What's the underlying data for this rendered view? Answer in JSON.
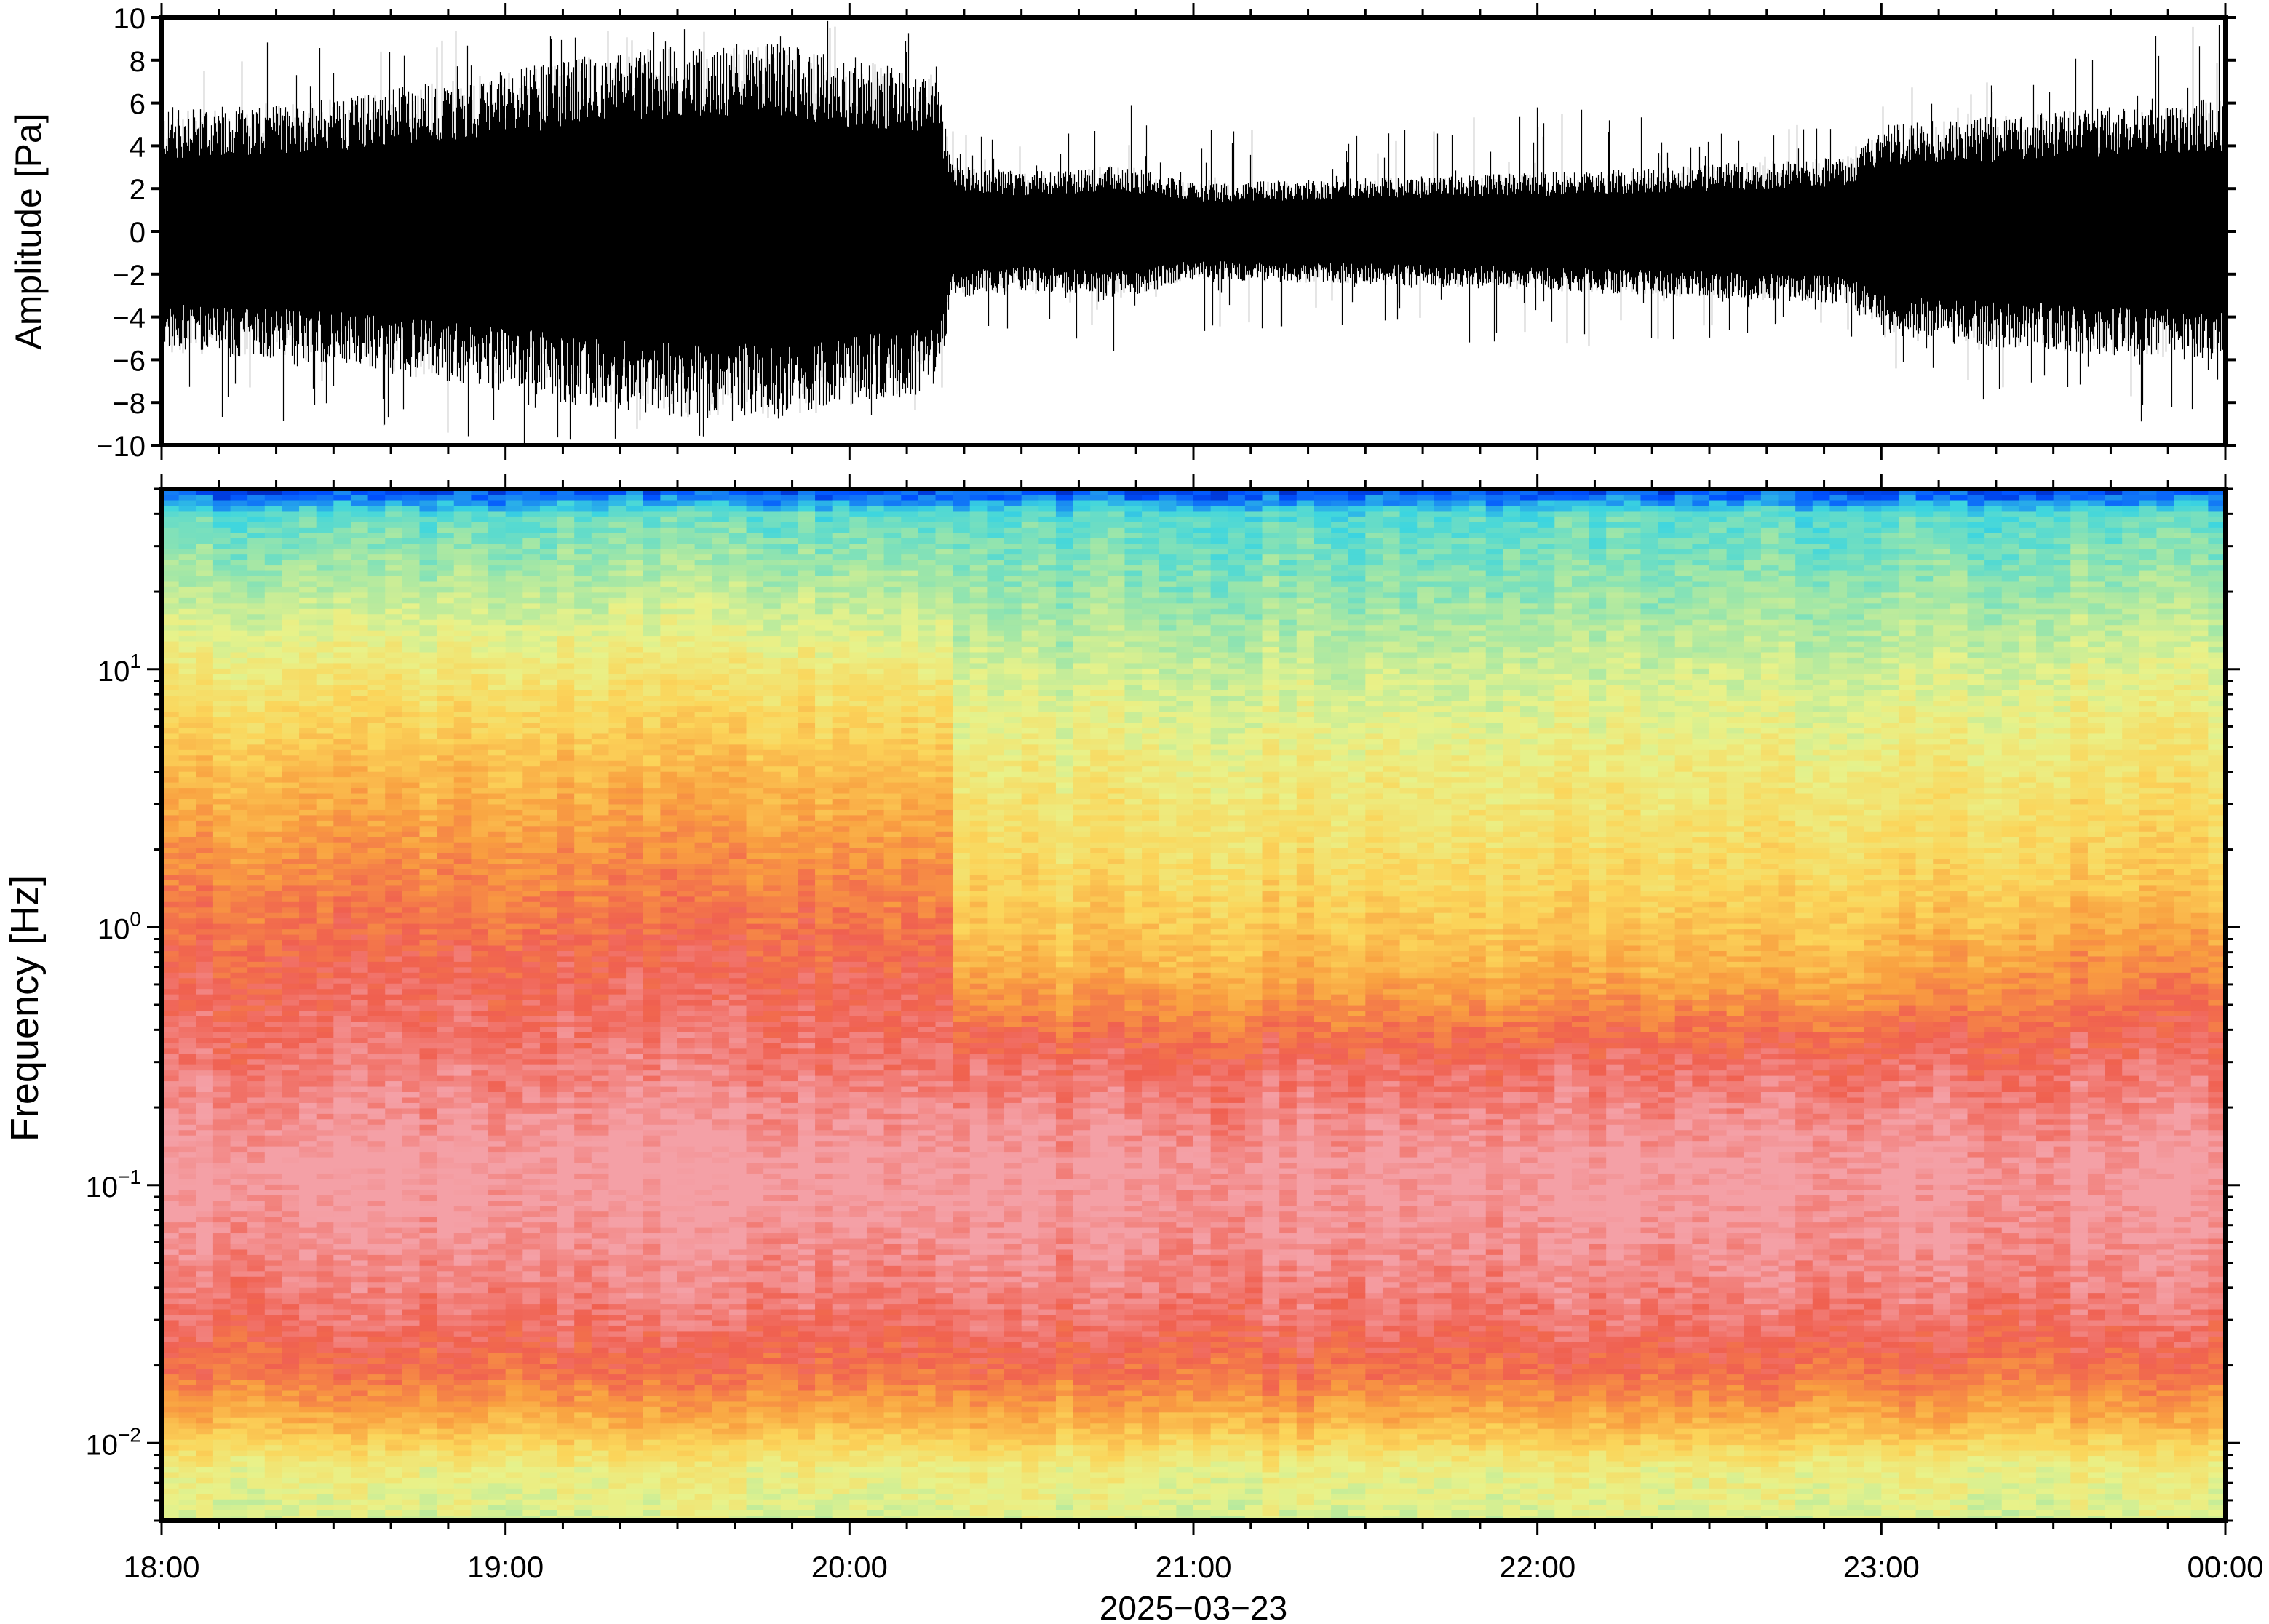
{
  "chart_data": [
    {
      "type": "line",
      "panel": "waveform",
      "title": "",
      "xlabel": "",
      "ylabel": "Amplitude [Pa]",
      "ylim": [
        -10,
        10
      ],
      "yticks": [
        "10",
        "8",
        "6",
        "4",
        "2",
        "0",
        "−2",
        "−4",
        "−6",
        "−8",
        "−10"
      ],
      "ytick_values": [
        10,
        8,
        6,
        4,
        2,
        0,
        -2,
        -4,
        -6,
        -8,
        -10
      ],
      "xlim_hours": [
        18,
        24
      ],
      "grid": false,
      "envelope": {
        "hours": [
          18.0,
          18.5,
          19.0,
          19.2,
          19.5,
          19.8,
          20.0,
          20.25,
          20.3,
          20.5,
          20.8,
          21.0,
          21.5,
          22.0,
          22.5,
          22.9,
          23.0,
          23.5,
          24.0
        ],
        "typical_peak": [
          4.5,
          5.0,
          6.0,
          6.5,
          7.0,
          7.0,
          6.5,
          6.0,
          2.5,
          2.2,
          2.5,
          1.8,
          2.0,
          2.2,
          2.5,
          2.8,
          4.0,
          4.5,
          5.0
        ],
        "max_peak": [
          9,
          9,
          10,
          10,
          10,
          10,
          10,
          9,
          5,
          4.5,
          6,
          5,
          4.5,
          6,
          5,
          5,
          7,
          8.5,
          10
        ]
      }
    },
    {
      "type": "heatmap",
      "panel": "spectrogram",
      "title": "",
      "xlabel": "2025−03−23",
      "ylabel": "Frequency [Hz]",
      "yscale": "log",
      "ylim": [
        0.005,
        50
      ],
      "ytick_values": [
        10,
        1,
        0.1,
        0.01
      ],
      "yticks": [
        {
          "base": "10",
          "exp": "1"
        },
        {
          "base": "10",
          "exp": "0"
        },
        {
          "base": "10",
          "exp": "−1"
        },
        {
          "base": "10",
          "exp": "−2"
        }
      ],
      "xticks": [
        "18:00",
        "19:00",
        "20:00",
        "21:00",
        "22:00",
        "23:00",
        "00:00"
      ],
      "xtick_hours": [
        18,
        19,
        20,
        21,
        22,
        23,
        24
      ],
      "colormap": [
        "#00007f",
        "#0052ff",
        "#3bd5e0",
        "#9ee6a8",
        "#e8f28a",
        "#fbd55a",
        "#f9a040",
        "#f06050",
        "#f4a0a6"
      ],
      "power_levels": {
        "band_freqs": [
          0.005,
          0.008,
          0.012,
          0.018,
          0.03,
          0.06,
          0.12,
          0.3,
          0.7,
          1.5,
          4,
          10,
          20,
          40,
          48
        ],
        "before_20_18": [
          3.8,
          4.2,
          5.6,
          6.6,
          7.3,
          7.8,
          8.1,
          7.4,
          7.0,
          6.4,
          5.5,
          4.4,
          3.4,
          2.4,
          1.0
        ],
        "after_20_20": [
          3.8,
          4.2,
          5.6,
          6.6,
          7.3,
          7.8,
          8.0,
          7.2,
          5.6,
          4.9,
          4.3,
          3.6,
          2.9,
          2.3,
          1.0
        ],
        "after_23_00": [
          3.8,
          4.2,
          5.6,
          6.6,
          7.3,
          7.8,
          8.0,
          7.3,
          6.3,
          5.2,
          4.6,
          3.9,
          3.1,
          2.4,
          1.0
        ]
      }
    }
  ]
}
